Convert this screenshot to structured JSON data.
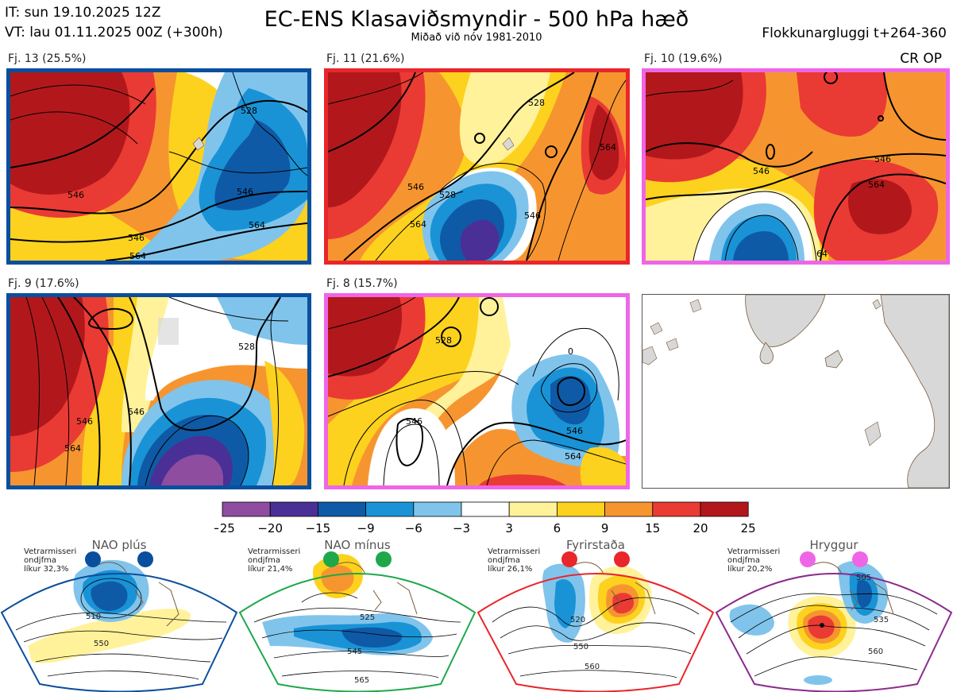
{
  "header": {
    "it_line": "IT: sun 19.10.2025 12Z",
    "vt_line": "VT: lau 01.11.2025 00Z  (+300h)",
    "title": "EC-ENS Klasaviðsmyndir - 500 hPa hæð",
    "subtitle": "Miðað við nóv 1981-2010",
    "window": "Flokkunargluggi t+264-360",
    "cr_op": "CR OP"
  },
  "panels": [
    {
      "label": "Fj. 13 (25.5%)",
      "border": "#0a4f9e",
      "contours": [
        "546",
        "528",
        "546",
        "564",
        "546",
        "564"
      ]
    },
    {
      "label": "Fj. 11 (21.6%)",
      "border": "#e8262b",
      "contours": [
        "528",
        "528",
        "546",
        "546",
        "564",
        "564"
      ]
    },
    {
      "label": "Fj. 10 (19.6%)",
      "border": "#ee66e6",
      "contours": [
        "546",
        "546",
        "564",
        "64"
      ]
    },
    {
      "label": "Fj. 9 (17.6%)",
      "border": "#0a4f9e",
      "contours": [
        "528",
        "546",
        "546",
        "564"
      ]
    },
    {
      "label": "Fj. 8 (15.7%)",
      "border": "#ee66e6",
      "contours": [
        "528",
        "546",
        "546",
        "564",
        "0"
      ]
    }
  ],
  "chart_data": {
    "type": "heatmap",
    "title": "EC-ENS Klasaviðsmyndir - 500 hPa hæð",
    "colorbar": {
      "ticks": [
        "-25",
        "-20",
        "-15",
        "-9",
        "-6",
        "-3",
        "3",
        "6",
        "9",
        "15",
        "20",
        "25"
      ],
      "colors": [
        "#8e4d9f",
        "#4a2f96",
        "#0f5aa6",
        "#1993d6",
        "#80c4ec",
        "#ffffff",
        "#fff29a",
        "#fdd21e",
        "#f6952f",
        "#ea3a34",
        "#b2181b"
      ]
    },
    "regimes": [
      {
        "name": "NAO plús",
        "info": [
          "Vetrarmisseri",
          "ondjfma",
          "líkur 32,3%"
        ],
        "dot_color": "#0a4f9e",
        "sector_color": "#0a4f9e",
        "contours": [
          "510",
          "550"
        ]
      },
      {
        "name": "NAO mínus",
        "info": [
          "Vetrarmisseri",
          "ondjfma",
          "líkur 21,4%"
        ],
        "dot_color": "#1ea84a",
        "sector_color": "#1ea84a",
        "contours": [
          "525",
          "545",
          "565"
        ]
      },
      {
        "name": "Fyrirstaða",
        "info": [
          "Vetrarmisseri",
          "ondjfma",
          "líkur 26,1%"
        ],
        "dot_color": "#e8262b",
        "sector_color": "#e8262b",
        "contours": [
          "520",
          "550",
          "560"
        ]
      },
      {
        "name": "Hryggur",
        "info": [
          "Vetrarmisseri",
          "ondjfma",
          "líkur 20,2%"
        ],
        "dot_color": "#ee66e6",
        "sector_color": "#8b2a8c",
        "contours": [
          "505",
          "535",
          "560"
        ]
      }
    ]
  }
}
